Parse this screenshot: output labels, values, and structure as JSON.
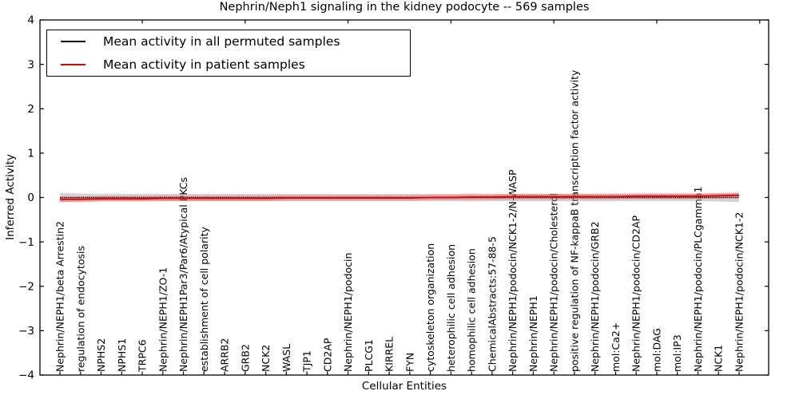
{
  "chart_data": {
    "type": "line",
    "title": "Nephrin/Neph1 signaling in the kidney podocyte -- 569 samples",
    "xlabel": "Cellular Entities",
    "ylabel": "Inferred Activity",
    "ylim": [
      -4,
      4
    ],
    "yticks": [
      4,
      3,
      2,
      1,
      0,
      -1,
      -2,
      -3,
      -4
    ],
    "grid": false,
    "legend_position": "upper left",
    "top_ticks_every": 5,
    "categories": [
      "Nephrin/NEPH1/beta Arrestin2",
      "regulation of endocytosis",
      "NPHS2",
      "NPHS1",
      "TRPC6",
      "Nephrin/NEPH1/ZO-1",
      "Nephrin/NEPH1Par3/Par6/Atypical PKCs",
      "establishment of cell polarity",
      "ARRB2",
      "GRB2",
      "NCK2",
      "WASL",
      "TJP1",
      "CD2AP",
      "Nephrin/NEPH1/podocin",
      "PLCG1",
      "KIRREL",
      "FYN",
      "cytoskeleton organization",
      "heterophilic cell adhesion",
      "homophilic cell adhesion",
      "ChemicalAbstracts:57-88-5",
      "Nephrin/NEPH1/podocin/NCK1-2/N-WASP",
      "Nephrin/NEPH1",
      "Nephrin/NEPH1/podocin/Cholesterol",
      "positive regulation of NF-kappaB transcription factor activity",
      "Nephrin/NEPH1/podocin/GRB2",
      "mol:Ca2+",
      "Nephrin/NEPH1/podocin/CD2AP",
      "mol:DAG",
      "mol:IP3",
      "Nephrin/NEPH1/podocin/PLCgamma1",
      "NCK1",
      "Nephrin/NEPH1/podocin/NCK1-2"
    ],
    "series": [
      {
        "id": "permuted-mean",
        "name": "Mean activity in all permuted samples",
        "color": "#000000",
        "width": 1.6,
        "dash": "1.4 1.2",
        "values": [
          0,
          0,
          0,
          0,
          0,
          0,
          0,
          0,
          0,
          0,
          0,
          0,
          0,
          0,
          0,
          0,
          0,
          0,
          0,
          0,
          0,
          0,
          0,
          0,
          0,
          0,
          0,
          0,
          0,
          0,
          0,
          0,
          0,
          0
        ]
      },
      {
        "id": "patient-mean",
        "name": "Mean activity in patient samples",
        "color": "#e00000",
        "width": 1.8,
        "dash": "",
        "values": [
          -0.04,
          -0.04,
          -0.03,
          -0.03,
          -0.03,
          -0.02,
          -0.02,
          -0.02,
          -0.02,
          -0.02,
          -0.02,
          -0.01,
          -0.01,
          -0.01,
          -0.01,
          -0.01,
          -0.01,
          -0.01,
          0,
          0,
          0.01,
          0.01,
          0.02,
          0.02,
          0.02,
          0.02,
          0.02,
          0.02,
          0.03,
          0.03,
          0.03,
          0.03,
          0.04,
          0.05
        ]
      }
    ],
    "bands": [
      {
        "name": "permuted-std",
        "color": "#9e9e9e",
        "opacity": 0.45,
        "upper": [
          0.1,
          0.09,
          0.08,
          0.08,
          0.08,
          0.08,
          0.08,
          0.08,
          0.08,
          0.08,
          0.08,
          0.08,
          0.08,
          0.08,
          0.08,
          0.08,
          0.08,
          0.08,
          0.08,
          0.08,
          0.09,
          0.08,
          0.08,
          0.08,
          0.08,
          0.08,
          0.08,
          0.08,
          0.08,
          0.08,
          0.08,
          0.08,
          0.09,
          0.1
        ],
        "lower": [
          -0.1,
          -0.09,
          -0.08,
          -0.08,
          -0.08,
          -0.08,
          -0.08,
          -0.08,
          -0.08,
          -0.08,
          -0.08,
          -0.08,
          -0.08,
          -0.08,
          -0.08,
          -0.08,
          -0.08,
          -0.08,
          -0.08,
          -0.08,
          -0.09,
          -0.08,
          -0.08,
          -0.08,
          -0.08,
          -0.08,
          -0.08,
          -0.08,
          -0.08,
          -0.08,
          -0.08,
          -0.08,
          -0.09,
          -0.1
        ]
      },
      {
        "name": "patient-std",
        "color": "#ff4040",
        "opacity": 0.38,
        "upper": [
          0.02,
          0.02,
          0.03,
          0.03,
          0.03,
          0.04,
          0.04,
          0.04,
          0.04,
          0.04,
          0.04,
          0.05,
          0.05,
          0.05,
          0.05,
          0.05,
          0.05,
          0.05,
          0.06,
          0.06,
          0.07,
          0.07,
          0.08,
          0.08,
          0.08,
          0.08,
          0.08,
          0.08,
          0.09,
          0.09,
          0.09,
          0.09,
          0.1,
          0.11
        ],
        "lower": [
          -0.1,
          -0.1,
          -0.09,
          -0.09,
          -0.09,
          -0.08,
          -0.08,
          -0.08,
          -0.08,
          -0.08,
          -0.08,
          -0.07,
          -0.07,
          -0.07,
          -0.07,
          -0.07,
          -0.07,
          -0.07,
          -0.06,
          -0.06,
          -0.05,
          -0.05,
          -0.04,
          -0.04,
          -0.04,
          -0.04,
          -0.04,
          -0.04,
          -0.03,
          -0.03,
          -0.03,
          -0.03,
          -0.02,
          -0.01
        ]
      }
    ]
  }
}
